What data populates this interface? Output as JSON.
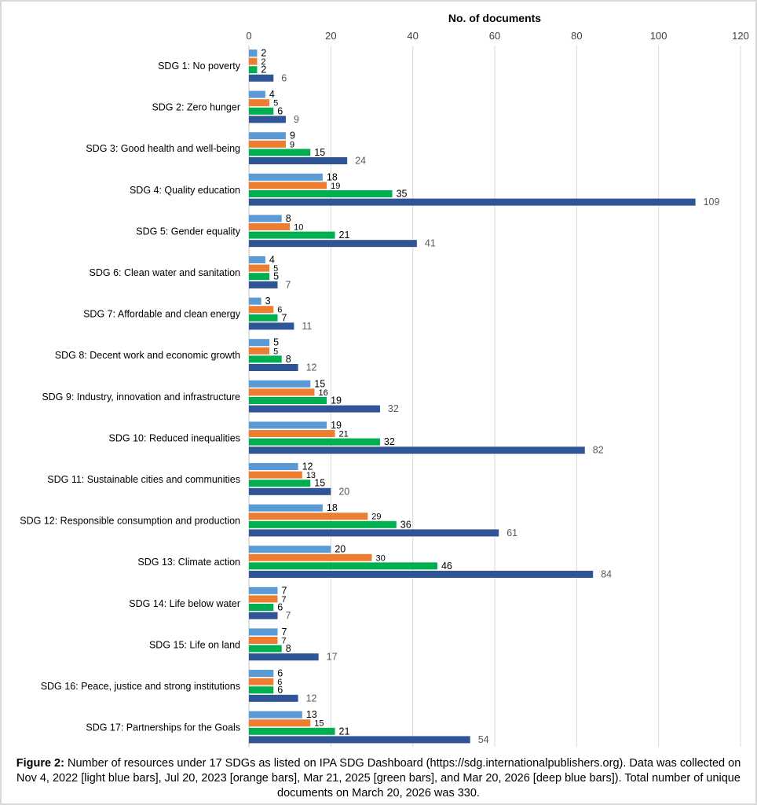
{
  "chart_data": {
    "type": "bar",
    "orientation": "horizontal",
    "xlabel": "No. of documents",
    "xlim": [
      0,
      120
    ],
    "xticks": [
      0,
      20,
      40,
      60,
      80,
      100,
      120
    ],
    "axis_position": "top",
    "grid": true,
    "legend": "none",
    "categories": [
      "SDG 1: No poverty",
      "SDG 2: Zero hunger",
      "SDG 3: Good health and well-being",
      "SDG 4: Quality education",
      "SDG 5: Gender equality",
      "SDG 6: Clean water and sanitation",
      "SDG 7: Affordable and clean energy",
      "SDG 8: Decent work and economic growth",
      "SDG 9: Industry, innovation and infrastructure",
      "SDG 10: Reduced inequalities",
      "SDG 11: Sustainable cities and communities",
      "SDG 12: Responsible consumption and production",
      "SDG 13: Climate action",
      "SDG 14: Life below water",
      "SDG 15: Life on land",
      "SDG 16: Peace, justice and strong institutions",
      "SDG 17: Partnerships for the Goals"
    ],
    "series": [
      {
        "color": "#5b9bd5",
        "label_color": "#000000",
        "values": [
          2,
          4,
          9,
          18,
          8,
          4,
          3,
          5,
          15,
          19,
          12,
          18,
          20,
          7,
          7,
          6,
          13
        ]
      },
      {
        "color": "#ed7d31",
        "label_color": "#000000",
        "values": [
          2,
          5,
          9,
          19,
          10,
          5,
          6,
          5,
          16,
          21,
          13,
          29,
          30,
          7,
          7,
          6,
          15
        ]
      },
      {
        "color": "#00b050",
        "label_color": "#000000",
        "values": [
          2,
          6,
          15,
          35,
          21,
          5,
          7,
          8,
          19,
          32,
          15,
          36,
          46,
          6,
          8,
          6,
          21
        ]
      },
      {
        "color": "#2f5597",
        "label_color": "#595959",
        "values": [
          6,
          9,
          24,
          109,
          41,
          7,
          11,
          12,
          32,
          82,
          20,
          61,
          84,
          7,
          17,
          12,
          54
        ]
      }
    ]
  },
  "caption": {
    "label": "Figure 2:",
    "text": " Number of resources under 17 SDGs as listed on IPA SDG Dashboard (https://sdg.internationalpublishers.org). Data was collected on Nov 4, 2022 [light blue bars], Jul 20, 2023 [orange bars], Mar 21, 2025 [green bars], and Mar 20, 2026 [deep blue bars]). Total number of unique documents on March 20, 2026 was 330."
  }
}
